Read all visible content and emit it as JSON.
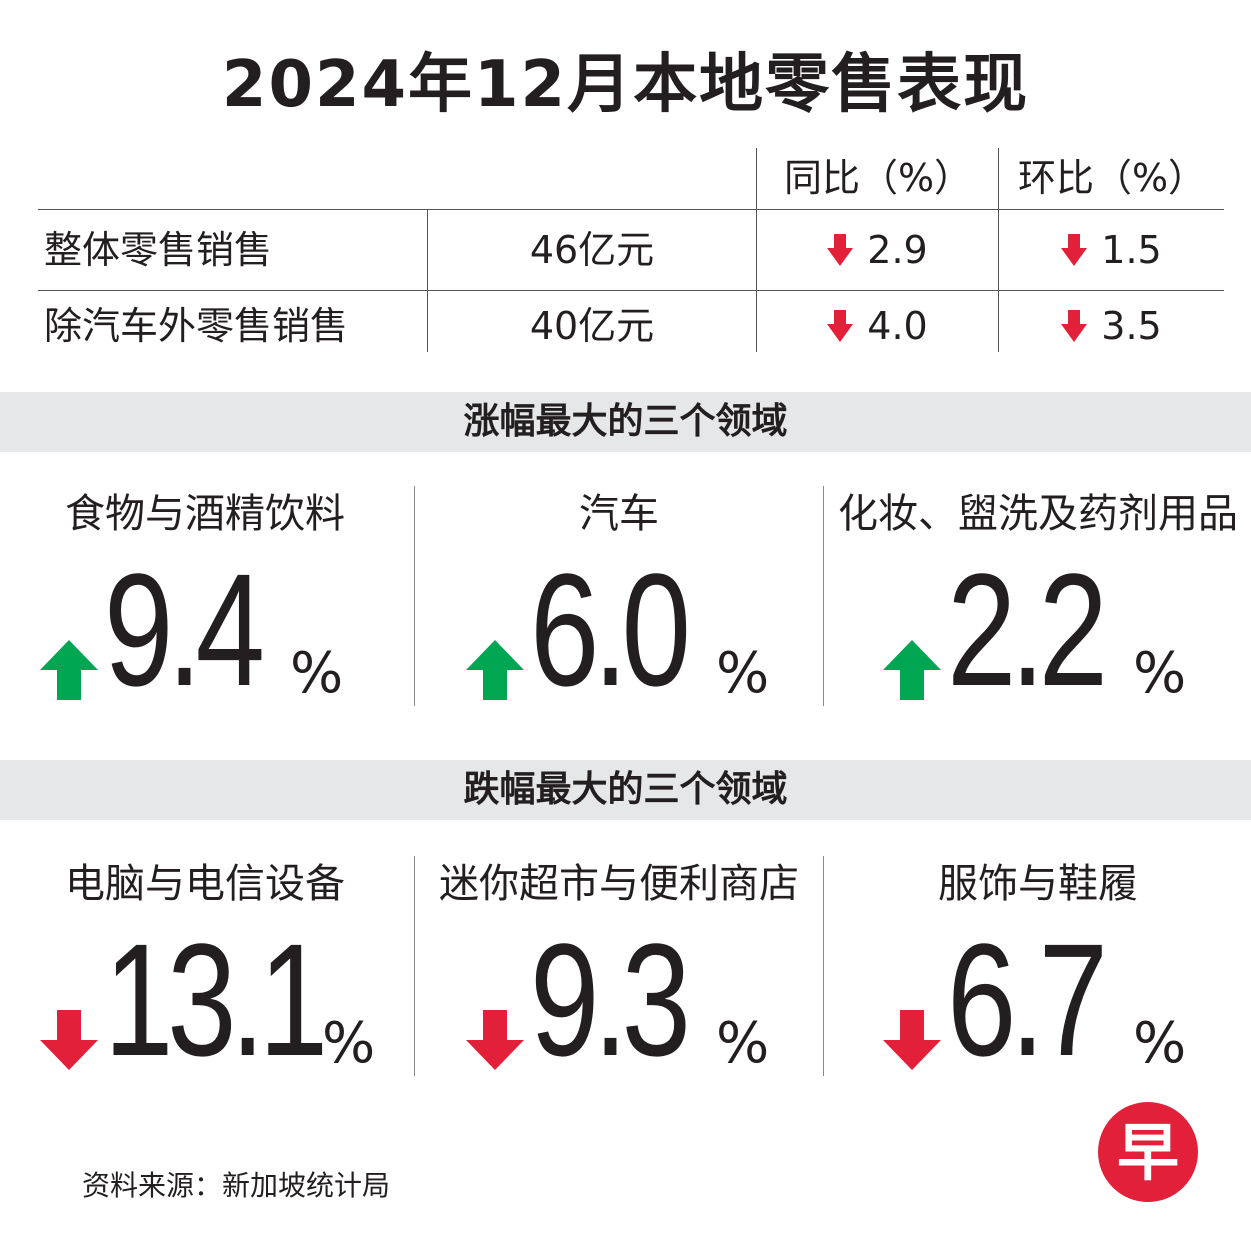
{
  "title": "2024年12月本地零售表现",
  "table": {
    "header_yoy": "同比（%）",
    "header_mom": "环比（%）",
    "rows": [
      {
        "label": "整体零售销售",
        "value": "46亿元",
        "yoy": "2.9",
        "mom": "1.5"
      },
      {
        "label": "除汽车外零售销售",
        "value": "40亿元",
        "yoy": "4.0",
        "mom": "3.5"
      }
    ]
  },
  "rise_section": {
    "heading": "涨幅最大的三个领域",
    "items": [
      {
        "label": "食物与酒精饮料",
        "value": "9.4",
        "unit": "%"
      },
      {
        "label": "汽车",
        "value": "6.0",
        "unit": "%"
      },
      {
        "label": "化妆、盥洗及药剂用品",
        "value": "2.2",
        "unit": "%"
      }
    ]
  },
  "fall_section": {
    "heading": "跌幅最大的三个领域",
    "items": [
      {
        "label": "电脑与电信设备",
        "value": "13.1",
        "unit": "%"
      },
      {
        "label": "迷你超市与便利商店",
        "value": "9.3",
        "unit": "%"
      },
      {
        "label": "服饰与鞋履",
        "value": "6.7",
        "unit": "%"
      }
    ]
  },
  "source": "资料来源：新加坡统计局",
  "logo_char": "早",
  "colors": {
    "up": "#00a651",
    "down": "#e2203a",
    "bar_bg": "#e6e7e8",
    "text": "#231f20"
  }
}
